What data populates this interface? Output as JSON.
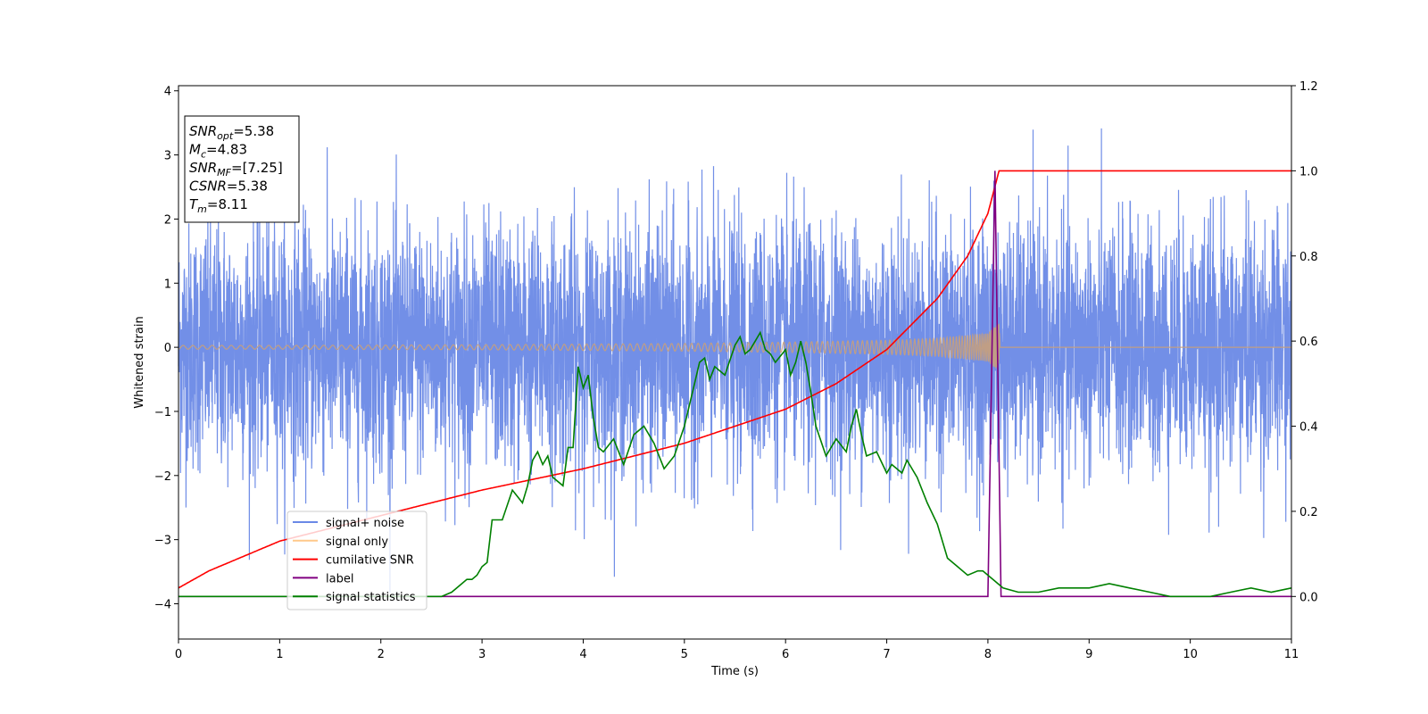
{
  "chart_data": {
    "type": "line",
    "xlabel": "Time (s)",
    "ylabel": "Whitened strain",
    "xlim": [
      0,
      11
    ],
    "ylim_left": [
      -4.55,
      4.08
    ],
    "ylim_right": [
      -0.1,
      1.2
    ],
    "x_ticks": [
      0,
      1,
      2,
      3,
      4,
      5,
      6,
      7,
      8,
      9,
      10,
      11
    ],
    "y_ticks_left": [
      -4,
      -3,
      -2,
      -1,
      0,
      1,
      2,
      3,
      4
    ],
    "y_ticks_right": [
      0.0,
      0.2,
      0.4,
      0.6,
      0.8,
      1.0,
      1.2
    ],
    "y_tick_labels_left": [
      "−4",
      "−3",
      "−2",
      "−1",
      "0",
      "1",
      "2",
      "3",
      "4"
    ],
    "y_tick_labels_right": [
      "0.0",
      "0.2",
      "0.4",
      "0.6",
      "0.8",
      "1.0",
      "1.2"
    ],
    "grid": false,
    "legend_position": "lower-left",
    "series": [
      {
        "name": "signal+ noise",
        "axis": "left",
        "color": "#6a89e6",
        "kind": "noise",
        "typical_range": [
          -2.0,
          2.0
        ],
        "peak_max": 3.65,
        "peak_min": -4.15,
        "sample_interval": 0.002
      },
      {
        "name": "signal only",
        "axis": "left",
        "color": "#ffc98a",
        "kind": "chirp",
        "envelope": {
          "x": [
            0,
            1,
            2,
            3,
            4,
            5,
            6,
            7,
            7.5,
            8,
            8.05,
            8.11,
            8.12,
            11
          ],
          "amp": [
            0.03,
            0.03,
            0.035,
            0.04,
            0.05,
            0.06,
            0.08,
            0.11,
            0.14,
            0.22,
            0.3,
            0.38,
            0.0,
            0.0
          ]
        }
      },
      {
        "name": "cumilative SNR",
        "axis": "right",
        "color": "#ff0000",
        "x": [
          0,
          0.3,
          1,
          2,
          3,
          4,
          5,
          5.5,
          6,
          6.5,
          7,
          7.5,
          7.8,
          8.0,
          8.11,
          8.12,
          11
        ],
        "y": [
          0.02,
          0.06,
          0.13,
          0.19,
          0.25,
          0.3,
          0.36,
          0.4,
          0.44,
          0.5,
          0.58,
          0.7,
          0.8,
          0.9,
          1.0,
          1.0,
          1.0
        ]
      },
      {
        "name": "label",
        "axis": "right",
        "color": "#800080",
        "x": [
          0,
          8.0,
          8.07,
          8.13,
          11
        ],
        "y": [
          0,
          0,
          1.0,
          0,
          0
        ]
      },
      {
        "name": "signal statistics",
        "axis": "right",
        "color": "#008000",
        "x": [
          0,
          2.6,
          2.7,
          2.8,
          2.85,
          2.9,
          2.95,
          3.0,
          3.05,
          3.1,
          3.2,
          3.3,
          3.4,
          3.45,
          3.5,
          3.55,
          3.6,
          3.65,
          3.7,
          3.8,
          3.85,
          3.9,
          3.95,
          4.0,
          4.05,
          4.1,
          4.15,
          4.2,
          4.3,
          4.4,
          4.5,
          4.6,
          4.7,
          4.8,
          4.9,
          5.0,
          5.1,
          5.15,
          5.2,
          5.25,
          5.3,
          5.4,
          5.5,
          5.55,
          5.6,
          5.65,
          5.7,
          5.75,
          5.8,
          5.85,
          5.9,
          6.0,
          6.05,
          6.1,
          6.15,
          6.2,
          6.25,
          6.3,
          6.4,
          6.5,
          6.6,
          6.65,
          6.7,
          6.75,
          6.8,
          6.9,
          7.0,
          7.05,
          7.1,
          7.15,
          7.2,
          7.3,
          7.4,
          7.5,
          7.6,
          7.7,
          7.8,
          7.9,
          7.95,
          8.0,
          8.05,
          8.1,
          8.15,
          8.3,
          8.5,
          8.7,
          9.0,
          9.2,
          9.4,
          9.6,
          9.8,
          10.0,
          10.2,
          10.4,
          10.6,
          10.8,
          11
        ],
        "y": [
          0.0,
          0.0,
          0.01,
          0.03,
          0.04,
          0.04,
          0.05,
          0.07,
          0.08,
          0.18,
          0.18,
          0.25,
          0.22,
          0.26,
          0.32,
          0.34,
          0.31,
          0.33,
          0.28,
          0.26,
          0.35,
          0.35,
          0.54,
          0.49,
          0.52,
          0.42,
          0.35,
          0.34,
          0.37,
          0.31,
          0.38,
          0.4,
          0.36,
          0.3,
          0.33,
          0.4,
          0.5,
          0.55,
          0.56,
          0.51,
          0.54,
          0.52,
          0.59,
          0.61,
          0.57,
          0.58,
          0.6,
          0.62,
          0.58,
          0.57,
          0.55,
          0.58,
          0.52,
          0.55,
          0.6,
          0.55,
          0.48,
          0.4,
          0.33,
          0.37,
          0.34,
          0.4,
          0.44,
          0.38,
          0.33,
          0.34,
          0.29,
          0.31,
          0.3,
          0.29,
          0.32,
          0.28,
          0.22,
          0.17,
          0.09,
          0.07,
          0.05,
          0.06,
          0.06,
          0.05,
          0.04,
          0.03,
          0.02,
          0.01,
          0.01,
          0.02,
          0.02,
          0.03,
          0.02,
          0.01,
          0.0,
          0.0,
          0.0,
          0.01,
          0.02,
          0.01,
          0.02
        ]
      }
    ],
    "annotations": [
      {
        "var": "SNR",
        "sub": "opt",
        "value": "=5.38"
      },
      {
        "var": "M",
        "sub": "c",
        "value": "=4.83"
      },
      {
        "var": "SNR",
        "sub": "MF",
        "value": "=[7.25]"
      },
      {
        "var": "CSNR",
        "sub": "",
        "value": "=5.38"
      },
      {
        "var": "T",
        "sub": "m",
        "value": "=8.11"
      }
    ]
  }
}
